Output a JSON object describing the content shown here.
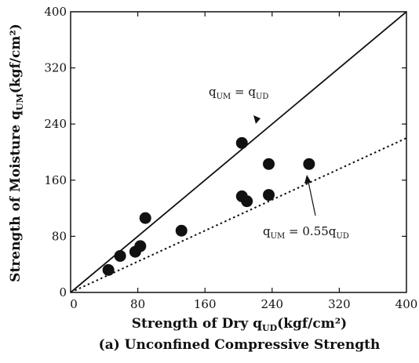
{
  "chart_data": {
    "type": "scatter",
    "xlabel": "Strength of Dry q",
    "xlabel_sub": "UD",
    "xlabel_unit": "(kgf/cm²)",
    "ylabel": "Strength of Moisture q",
    "ylabel_sub": "UM",
    "ylabel_unit": "(kgf/cm²)",
    "caption": "(a) Unconfined Compressive Strength",
    "xlim": [
      0,
      400
    ],
    "ylim": [
      0,
      400
    ],
    "xticks": [
      "0",
      "80",
      "160",
      "240",
      "320",
      "400"
    ],
    "yticks": [
      "0",
      "80",
      "160",
      "240",
      "320",
      "400"
    ],
    "grid": false,
    "points": [
      {
        "x": 45,
        "y": 32
      },
      {
        "x": 59,
        "y": 52
      },
      {
        "x": 77,
        "y": 58
      },
      {
        "x": 83,
        "y": 66
      },
      {
        "x": 89,
        "y": 106
      },
      {
        "x": 132,
        "y": 88
      },
      {
        "x": 204,
        "y": 213
      },
      {
        "x": 204,
        "y": 137
      },
      {
        "x": 210,
        "y": 130
      },
      {
        "x": 236,
        "y": 183
      },
      {
        "x": 236,
        "y": 139
      },
      {
        "x": 284,
        "y": 183
      }
    ],
    "lines": [
      {
        "style": "solid",
        "slope": 1.0
      },
      {
        "style": "dotted",
        "slope": 0.55
      }
    ],
    "annotations": [
      {
        "text": "q",
        "sub1": "UM",
        "mid": " = q",
        "sub2": "UD"
      },
      {
        "text": "q",
        "sub1": "UM",
        "mid": " = 0.55q",
        "sub2": "UD"
      }
    ]
  }
}
